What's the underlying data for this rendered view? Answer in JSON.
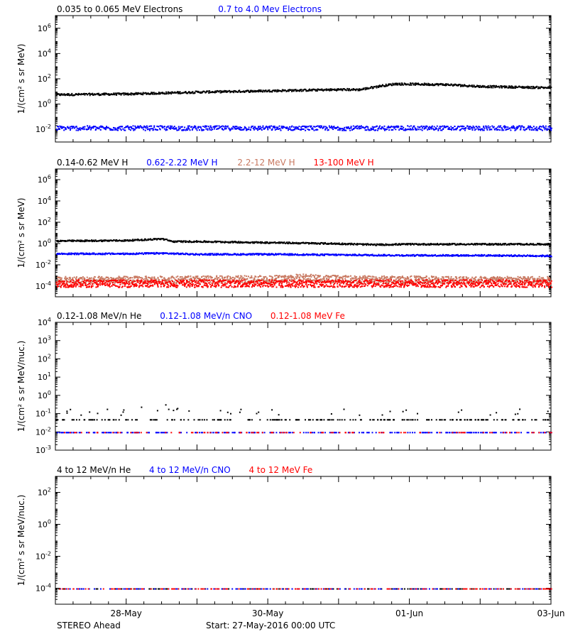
{
  "colors": {
    "black": "#000000",
    "blue": "#0000ff",
    "salmon": "#c87860",
    "red": "#ff0000"
  },
  "footer": {
    "spacecraft": "STEREO Ahead",
    "start": "Start: 27-May-2016 00:00 UTC"
  },
  "x_axis": {
    "ticks": [
      {
        "label": "28-May",
        "day": 1
      },
      {
        "label": "30-May",
        "day": 3
      },
      {
        "label": "01-Jun",
        "day": 5
      },
      {
        "label": "03-Jun",
        "day": 7
      }
    ],
    "xlim_days": [
      0,
      7
    ]
  },
  "chart_data": [
    {
      "type": "scatter",
      "ylabel": "1/(cm² s sr MeV)",
      "yscale": "log",
      "ylim_exp": [
        -3,
        7
      ],
      "yticks": [
        {
          "exp": -2,
          "label": "10-2"
        },
        {
          "exp": 0,
          "label": "100"
        },
        {
          "exp": 2,
          "label": "102"
        },
        {
          "exp": 4,
          "label": "104"
        },
        {
          "exp": 6,
          "label": "106"
        }
      ],
      "series": [
        {
          "name": "0.035 to 0.065 MeV Electrons",
          "color": "black",
          "points": [
            [
              0,
              0.8
            ],
            [
              1,
              0.85
            ],
            [
              2,
              1.0
            ],
            [
              3,
              1.1
            ],
            [
              3.5,
              1.15
            ],
            [
              4,
              1.2
            ],
            [
              4.3,
              1.2
            ],
            [
              4.6,
              1.5
            ],
            [
              4.8,
              1.65
            ],
            [
              5.5,
              1.6
            ],
            [
              6,
              1.45
            ],
            [
              7,
              1.35
            ]
          ]
        },
        {
          "name": "0.7 to 4.0 Mev Electrons",
          "color": "blue",
          "points": [
            [
              0,
              -1.85
            ],
            [
              7,
              -1.85
            ]
          ]
        }
      ]
    },
    {
      "type": "scatter",
      "ylabel": "1/(cm² s sr MeV)",
      "yscale": "log",
      "ylim_exp": [
        -5,
        7
      ],
      "yticks": [
        {
          "exp": -4,
          "label": "10-4"
        },
        {
          "exp": -2,
          "label": "10-2"
        },
        {
          "exp": 0,
          "label": "100"
        },
        {
          "exp": 2,
          "label": "102"
        },
        {
          "exp": 4,
          "label": "104"
        },
        {
          "exp": 6,
          "label": "106"
        }
      ],
      "series": [
        {
          "name": "0.14-0.62 MeV H",
          "color": "black",
          "points": [
            [
              0,
              0.3
            ],
            [
              1,
              0.35
            ],
            [
              1.5,
              0.5
            ],
            [
              1.65,
              0.25
            ],
            [
              2,
              0.25
            ],
            [
              3,
              0.15
            ],
            [
              4,
              0.05
            ],
            [
              4.5,
              -0.05
            ],
            [
              5,
              0.0
            ],
            [
              6,
              0.0
            ],
            [
              7,
              0.0
            ]
          ]
        },
        {
          "name": "0.62-2.22 MeV H",
          "color": "blue",
          "points": [
            [
              0,
              -0.9
            ],
            [
              1,
              -0.9
            ],
            [
              1.5,
              -0.85
            ],
            [
              2,
              -0.95
            ],
            [
              3,
              -0.95
            ],
            [
              4,
              -1.0
            ],
            [
              5,
              -1.05
            ],
            [
              6,
              -1.05
            ],
            [
              7,
              -1.1
            ]
          ]
        },
        {
          "name": "2.2-12 MeV H",
          "color": "salmon",
          "points": [
            [
              0,
              -3.4
            ],
            [
              3,
              -3.3
            ],
            [
              3.5,
              -3.15
            ],
            [
              4,
              -3.3
            ],
            [
              7,
              -3.4
            ]
          ]
        },
        {
          "name": "13-100 MeV H",
          "color": "red",
          "points": [
            [
              0,
              -3.7
            ],
            [
              7,
              -3.7
            ]
          ]
        }
      ]
    },
    {
      "type": "scatter",
      "ylabel": "1/(cm² s sr MeV/nuc.)",
      "yscale": "log",
      "ylim_exp": [
        -3,
        4
      ],
      "yticks": [
        {
          "exp": -3,
          "label": "10-3"
        },
        {
          "exp": -2,
          "label": "10-2"
        },
        {
          "exp": -1,
          "label": "10-1"
        },
        {
          "exp": 0,
          "label": "100"
        },
        {
          "exp": 1,
          "label": "101"
        },
        {
          "exp": 2,
          "label": "102"
        },
        {
          "exp": 3,
          "label": "103"
        },
        {
          "exp": 4,
          "label": "104"
        }
      ],
      "series": [
        {
          "name": "0.12-1.08 MeV/n He",
          "color": "black",
          "points": [
            [
              0,
              -1.3
            ],
            [
              7,
              -1.3
            ]
          ]
        },
        {
          "name": "0.12-1.08 MeV/n CNO",
          "color": "blue",
          "points": [
            [
              0,
              -2.0
            ],
            [
              7,
              -2.0
            ]
          ]
        },
        {
          "name": "0.12-1.08 MeV Fe",
          "color": "red",
          "points": [
            [
              0,
              -2.0
            ],
            [
              7,
              -2.0
            ]
          ]
        }
      ]
    },
    {
      "type": "scatter",
      "ylabel": "1/(cm² s sr MeV/nuc.)",
      "yscale": "log",
      "ylim_exp": [
        -5,
        3
      ],
      "yticks": [
        {
          "exp": -4,
          "label": "10-4"
        },
        {
          "exp": -2,
          "label": "10-2"
        },
        {
          "exp": 0,
          "label": "100"
        },
        {
          "exp": 2,
          "label": "102"
        }
      ],
      "series": [
        {
          "name": "4 to 12 MeV/n He",
          "color": "black",
          "points": [
            [
              0,
              -4.0
            ],
            [
              7,
              -4.0
            ]
          ]
        },
        {
          "name": "4 to 12 MeV/n CNO",
          "color": "blue",
          "points": [
            [
              0,
              -4.0
            ],
            [
              7,
              -4.0
            ]
          ]
        },
        {
          "name": "4 to 12 MeV Fe",
          "color": "red",
          "points": [
            [
              0,
              -4.0
            ],
            [
              7,
              -4.0
            ]
          ]
        }
      ]
    }
  ]
}
